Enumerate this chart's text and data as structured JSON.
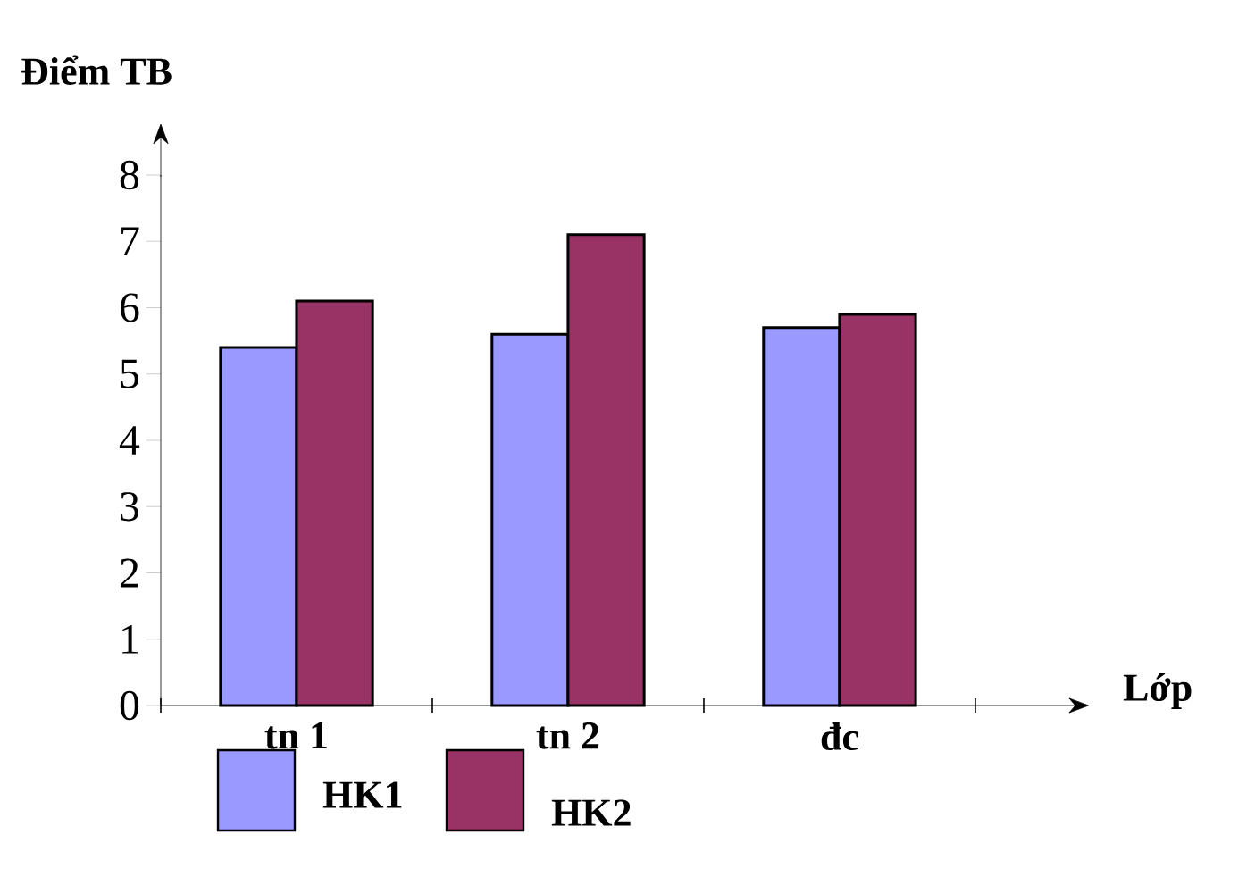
{
  "chart_data": {
    "type": "bar",
    "xlabel": "Lớp",
    "ylabel": "Điểm TB",
    "categories": [
      "tn 1",
      "tn 2",
      "đc"
    ],
    "series": [
      {
        "name": "HK1",
        "color": "#9999ff",
        "values": [
          5.4,
          5.6,
          5.7
        ]
      },
      {
        "name": "HK2",
        "color": "#993366",
        "values": [
          6.1,
          7.1,
          5.9
        ]
      }
    ],
    "ylim": [
      0,
      8
    ],
    "yticks": [
      0,
      1,
      2,
      3,
      4,
      5,
      6,
      7,
      8
    ],
    "grid": false,
    "legend": "bottom"
  }
}
